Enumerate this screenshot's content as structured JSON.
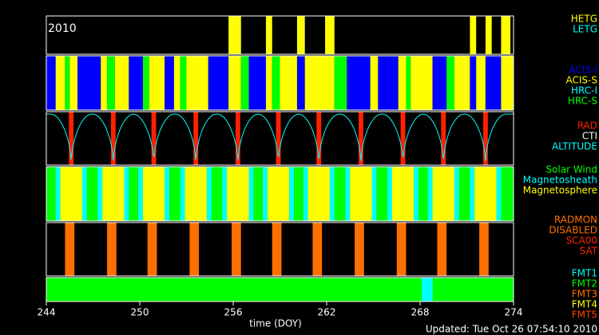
{
  "chart_data": {
    "type": "timeline",
    "year": "2010",
    "x_label": "time (DOY)",
    "footer": "Updated: Tue Oct 26 07:54:10 2010",
    "xlim": [
      244,
      274
    ],
    "xticks": [
      244,
      250,
      256,
      262,
      268,
      274
    ],
    "panels": [
      {
        "legend": [
          {
            "name": "HETG",
            "color": "#ffff00"
          },
          {
            "name": "LETG",
            "color": "#00ffff"
          }
        ],
        "segments": [
          [
            255.7,
            256.5,
            0
          ],
          [
            258.1,
            258.5,
            0
          ],
          [
            260.1,
            260.6,
            0
          ],
          [
            261.9,
            262.5,
            0
          ],
          [
            271.2,
            271.6,
            0
          ],
          [
            272.2,
            272.6,
            0
          ],
          [
            273.2,
            273.8,
            0
          ]
        ]
      },
      {
        "legend": [
          {
            "name": "ACIS-I",
            "color": "#0000ff"
          },
          {
            "name": "ACIS-S",
            "color": "#ffff00"
          },
          {
            "name": "HRC-I",
            "color": "#00ffff"
          },
          {
            "name": "HRC-S",
            "color": "#00ff00"
          }
        ],
        "segments": [
          [
            244,
            244.6,
            0
          ],
          [
            244.6,
            245.2,
            1
          ],
          [
            245.2,
            245.5,
            3
          ],
          [
            245.5,
            246,
            1
          ],
          [
            246,
            247.5,
            0
          ],
          [
            247.5,
            247.9,
            1
          ],
          [
            247.9,
            248.4,
            3
          ],
          [
            248.4,
            249.3,
            1
          ],
          [
            249.3,
            250.2,
            0
          ],
          [
            250.2,
            250.6,
            3
          ],
          [
            250.6,
            251.6,
            1
          ],
          [
            251.6,
            252.2,
            0
          ],
          [
            252.2,
            252.6,
            1
          ],
          [
            252.6,
            253,
            3
          ],
          [
            253,
            254.4,
            1
          ],
          [
            254.4,
            255.7,
            0
          ],
          [
            255.7,
            256.5,
            1
          ],
          [
            256.5,
            257,
            3
          ],
          [
            257,
            258.1,
            0
          ],
          [
            258.1,
            258.5,
            1
          ],
          [
            258.5,
            259,
            3
          ],
          [
            259,
            260.1,
            1
          ],
          [
            260.1,
            260.6,
            0
          ],
          [
            260.6,
            262.5,
            1
          ],
          [
            262.5,
            263.3,
            3
          ],
          [
            263.3,
            264.8,
            0
          ],
          [
            264.8,
            265.3,
            1
          ],
          [
            265.3,
            266.6,
            0
          ],
          [
            266.6,
            267.1,
            1
          ],
          [
            267.1,
            267.4,
            3
          ],
          [
            267.4,
            268.8,
            1
          ],
          [
            268.8,
            269.7,
            0
          ],
          [
            269.7,
            270.2,
            3
          ],
          [
            270.2,
            271.2,
            1
          ],
          [
            271.2,
            271.6,
            0
          ],
          [
            271.6,
            272.2,
            1
          ],
          [
            272.2,
            273.2,
            0
          ],
          [
            273.2,
            274,
            1
          ]
        ]
      },
      {
        "legend": [
          {
            "name": "RAD",
            "color": "#ff2000"
          },
          {
            "name": "CTI",
            "color": "#ffffff"
          },
          {
            "name": "ALTITUDE",
            "color": "#00ffff"
          }
        ],
        "segments": [
          [
            245.45,
            245.75,
            0
          ],
          [
            248.15,
            248.45,
            0
          ],
          [
            250.75,
            251.05,
            0
          ],
          [
            253.45,
            253.75,
            0
          ],
          [
            256.15,
            256.45,
            0
          ],
          [
            258.75,
            259.05,
            0
          ],
          [
            261.35,
            261.65,
            0
          ],
          [
            264.05,
            264.35,
            0
          ],
          [
            266.75,
            267.05,
            0
          ],
          [
            269.35,
            269.65,
            0
          ],
          [
            272.05,
            272.35,
            0
          ]
        ],
        "perigees": [
          245.6,
          248.3,
          250.9,
          253.6,
          256.3,
          258.9,
          261.5,
          264.2,
          266.9,
          269.5,
          272.2
        ]
      },
      {
        "legend": [
          {
            "name": "Solar Wind",
            "color": "#00ff00"
          },
          {
            "name": "Magnetosheath",
            "color": "#00ffff"
          },
          {
            "name": "Magnetosphere",
            "color": "#ffff00"
          }
        ],
        "segments": [
          [
            244,
            274,
            0
          ],
          [
            244.6,
            244.9,
            1
          ],
          [
            244.9,
            246.3,
            2
          ],
          [
            246.3,
            246.6,
            1
          ],
          [
            247.3,
            247.6,
            1
          ],
          [
            247.6,
            249.0,
            2
          ],
          [
            249.0,
            249.3,
            1
          ],
          [
            249.9,
            250.2,
            1
          ],
          [
            250.2,
            251.6,
            2
          ],
          [
            251.6,
            251.9,
            1
          ],
          [
            252.6,
            252.9,
            1
          ],
          [
            252.9,
            254.3,
            2
          ],
          [
            254.3,
            254.6,
            1
          ],
          [
            255.3,
            255.6,
            1
          ],
          [
            255.6,
            257.0,
            2
          ],
          [
            257.0,
            257.3,
            1
          ],
          [
            257.9,
            258.2,
            1
          ],
          [
            258.2,
            259.6,
            2
          ],
          [
            259.6,
            259.9,
            1
          ],
          [
            260.5,
            260.8,
            1
          ],
          [
            260.8,
            262.2,
            2
          ],
          [
            262.2,
            262.5,
            1
          ],
          [
            263.2,
            263.5,
            1
          ],
          [
            263.5,
            264.9,
            2
          ],
          [
            264.9,
            265.2,
            1
          ],
          [
            265.9,
            266.2,
            1
          ],
          [
            266.2,
            267.6,
            2
          ],
          [
            267.6,
            267.9,
            1
          ],
          [
            268.5,
            268.8,
            1
          ],
          [
            268.8,
            270.2,
            2
          ],
          [
            270.2,
            270.5,
            1
          ],
          [
            271.2,
            271.5,
            1
          ],
          [
            271.5,
            272.9,
            2
          ],
          [
            272.9,
            273.2,
            1
          ]
        ]
      },
      {
        "legend": [
          {
            "name": "RADMON",
            "color": "#ff7000"
          },
          {
            "name": "DISABLED",
            "color": "#ff7000"
          },
          {
            "name": "SCA00",
            "color": "#ff2000"
          },
          {
            "name": "SAT",
            "color": "#ff2000"
          }
        ],
        "segments": [
          [
            245.2,
            245.8,
            0
          ],
          [
            247.9,
            248.5,
            0
          ],
          [
            250.5,
            251.1,
            0
          ],
          [
            253.2,
            253.8,
            0
          ],
          [
            255.9,
            256.5,
            0
          ],
          [
            258.5,
            259.1,
            0
          ],
          [
            261.1,
            261.7,
            0
          ],
          [
            263.8,
            264.4,
            0
          ],
          [
            266.5,
            267.1,
            0
          ],
          [
            269.1,
            269.7,
            0
          ],
          [
            271.8,
            272.4,
            0
          ]
        ]
      },
      {
        "legend": [
          {
            "name": "FMT1",
            "color": "#00ffff"
          },
          {
            "name": "FMT2",
            "color": "#00ff00"
          },
          {
            "name": "FMT3",
            "color": "#ff7000"
          },
          {
            "name": "FMT4",
            "color": "#ffff00"
          },
          {
            "name": "FMT5",
            "color": "#ff4000"
          }
        ],
        "segments": [
          [
            244,
            274,
            1
          ],
          [
            268.1,
            268.8,
            0
          ]
        ]
      }
    ]
  }
}
